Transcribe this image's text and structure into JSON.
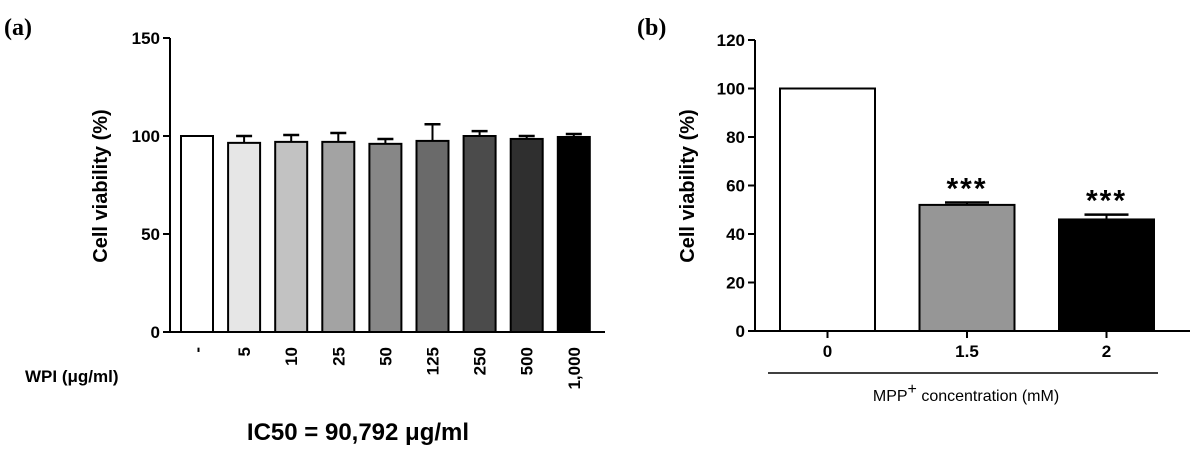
{
  "chart_data": [
    {
      "panel_label": "(a)",
      "type": "bar",
      "ylabel": "Cell viability (%)",
      "ylim": [
        0,
        150
      ],
      "yticks": [
        "0",
        "50",
        "100",
        "150"
      ],
      "category_axis_label": "WPI (μg/ml)",
      "categories": [
        "-",
        "5",
        "10",
        "25",
        "50",
        "125",
        "250",
        "500",
        "1,000"
      ],
      "values": [
        100,
        96.5,
        97,
        97,
        96,
        97.5,
        100,
        98.5,
        99.5
      ],
      "errors": [
        0,
        3.5,
        3.5,
        4.5,
        2.5,
        8.5,
        2.5,
        1.5,
        1.5
      ],
      "colors": [
        "#ffffff",
        "#e6e6e6",
        "#c2c2c2",
        "#a3a3a3",
        "#878787",
        "#6a6a6a",
        "#4b4b4b",
        "#2f2f2f",
        "#000000"
      ],
      "annotation": "IC50 = 90,792 μg/ml"
    },
    {
      "panel_label": "(b)",
      "type": "bar",
      "ylabel": "Cell viability (%)",
      "ylim": [
        0,
        120
      ],
      "yticks": [
        "0",
        "20",
        "40",
        "60",
        "80",
        "100",
        "120"
      ],
      "categories": [
        "0",
        "1.5",
        "2"
      ],
      "values": [
        100,
        52,
        46
      ],
      "errors": [
        0,
        1,
        2
      ],
      "colors": [
        "#ffffff",
        "#969696",
        "#000000"
      ],
      "significance": [
        "",
        "***",
        "***"
      ],
      "xlabel_main": "MPP",
      "xlabel_sup": "+",
      "xlabel_rest": " concentration (mM)"
    }
  ]
}
